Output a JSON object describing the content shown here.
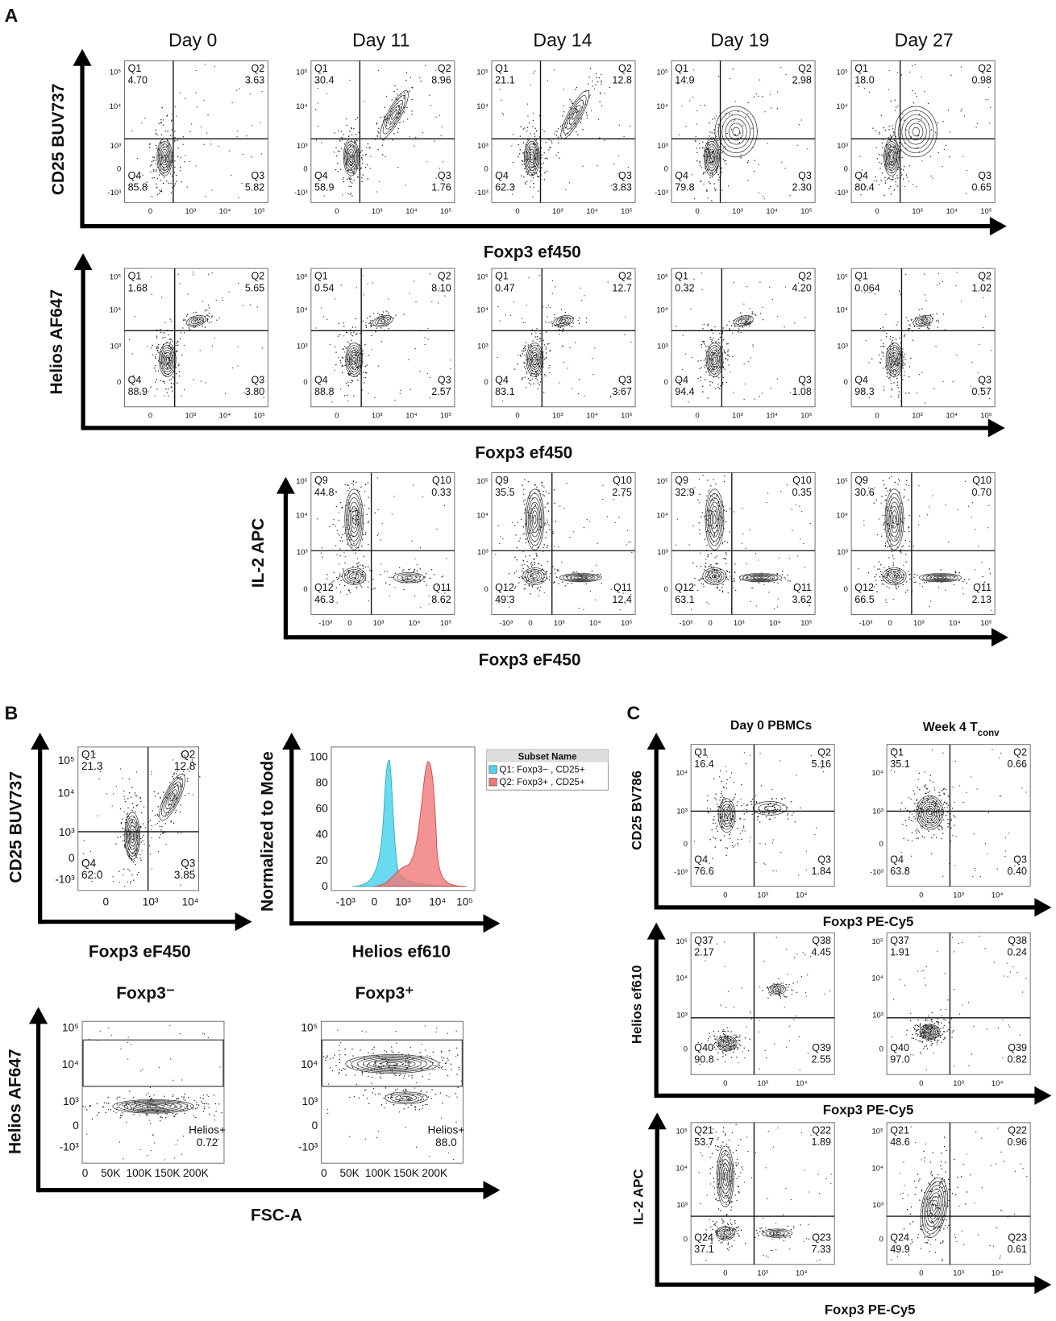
{
  "panel_a": {
    "label": "A",
    "days": [
      "Day 0",
      "Day 11",
      "Day 14",
      "Day 19",
      "Day 27"
    ],
    "rows": [
      {
        "y_label": "CD25 BUV737",
        "x_label": "Foxp3 ef450",
        "y_ticks": [
          "10⁵",
          "10⁴",
          "10³",
          "0",
          "-10³"
        ],
        "x_ticks": [
          "0",
          "10³",
          "10⁴",
          "10⁵"
        ],
        "plots": [
          {
            "quadrants": [
              {
                "name": "Q1",
                "value": "4.70"
              },
              {
                "name": "Q2",
                "value": "3.63"
              },
              {
                "name": "Q3",
                "value": "5.82"
              },
              {
                "name": "Q4",
                "value": "85.8"
              }
            ]
          },
          {
            "quadrants": [
              {
                "name": "Q1",
                "value": "30.4"
              },
              {
                "name": "Q2",
                "value": "8.96"
              },
              {
                "name": "Q3",
                "value": "1.76"
              },
              {
                "name": "Q4",
                "value": "58.9"
              }
            ]
          },
          {
            "quadrants": [
              {
                "name": "Q1",
                "value": "21.1"
              },
              {
                "name": "Q2",
                "value": "12.8"
              },
              {
                "name": "Q3",
                "value": "3.83"
              },
              {
                "name": "Q4",
                "value": "62.3"
              }
            ]
          },
          {
            "quadrants": [
              {
                "name": "Q1",
                "value": "14.9"
              },
              {
                "name": "Q2",
                "value": "2.98"
              },
              {
                "name": "Q3",
                "value": "2.30"
              },
              {
                "name": "Q4",
                "value": "79.8"
              }
            ]
          },
          {
            "quadrants": [
              {
                "name": "Q1",
                "value": "18.0"
              },
              {
                "name": "Q2",
                "value": "0.98"
              },
              {
                "name": "Q3",
                "value": "0.65"
              },
              {
                "name": "Q4",
                "value": "80.4"
              }
            ]
          }
        ]
      },
      {
        "y_label": "Helios AF647",
        "x_label": "Foxp3 ef450",
        "y_ticks": [
          "10⁵",
          "10⁴",
          "10³",
          "0"
        ],
        "x_ticks": [
          "0",
          "10³",
          "10⁴",
          "10⁵"
        ],
        "plots": [
          {
            "quadrants": [
              {
                "name": "Q1",
                "value": "1.68"
              },
              {
                "name": "Q2",
                "value": "5.65"
              },
              {
                "name": "Q3",
                "value": "3.80"
              },
              {
                "name": "Q4",
                "value": "88.9"
              }
            ]
          },
          {
            "quadrants": [
              {
                "name": "Q1",
                "value": "0.54"
              },
              {
                "name": "Q2",
                "value": "8.10"
              },
              {
                "name": "Q3",
                "value": "2.57"
              },
              {
                "name": "Q4",
                "value": "88.8"
              }
            ]
          },
          {
            "quadrants": [
              {
                "name": "Q1",
                "value": "0.47"
              },
              {
                "name": "Q2",
                "value": "12.7"
              },
              {
                "name": "Q3",
                "value": "3.67"
              },
              {
                "name": "Q4",
                "value": "83.1"
              }
            ]
          },
          {
            "quadrants": [
              {
                "name": "Q1",
                "value": "0.32"
              },
              {
                "name": "Q2",
                "value": "4.20"
              },
              {
                "name": "Q3",
                "value": "1.08"
              },
              {
                "name": "Q4",
                "value": "94.4"
              }
            ]
          },
          {
            "quadrants": [
              {
                "name": "Q1",
                "value": "0.064"
              },
              {
                "name": "Q2",
                "value": "1.02"
              },
              {
                "name": "Q3",
                "value": "0.57"
              },
              {
                "name": "Q4",
                "value": "98.3"
              }
            ]
          }
        ]
      },
      {
        "y_label": "IL-2 APC",
        "x_label": "Foxp3 eF450",
        "y_ticks": [
          "10⁵",
          "10⁴",
          "10³",
          "0"
        ],
        "x_ticks": [
          "-10³",
          "0",
          "10³",
          "10⁴",
          "10⁵"
        ],
        "plots": [
          {
            "quadrants": [
              {
                "name": "Q9",
                "value": "44.8"
              },
              {
                "name": "Q10",
                "value": "0.33"
              },
              {
                "name": "Q11",
                "value": "8.62"
              },
              {
                "name": "Q12",
                "value": "46.3"
              }
            ]
          },
          {
            "quadrants": [
              {
                "name": "Q9",
                "value": "35.5"
              },
              {
                "name": "Q10",
                "value": "2.75"
              },
              {
                "name": "Q11",
                "value": "12.4"
              },
              {
                "name": "Q12",
                "value": "49.3"
              }
            ]
          },
          {
            "quadrants": [
              {
                "name": "Q9",
                "value": "32.9"
              },
              {
                "name": "Q10",
                "value": "0.35"
              },
              {
                "name": "Q11",
                "value": "3.62"
              },
              {
                "name": "Q12",
                "value": "63.1"
              }
            ]
          },
          {
            "quadrants": [
              {
                "name": "Q9",
                "value": "30.6"
              },
              {
                "name": "Q10",
                "value": "0.70"
              },
              {
                "name": "Q11",
                "value": "2.13"
              },
              {
                "name": "Q12",
                "value": "66.5"
              }
            ]
          }
        ]
      }
    ]
  },
  "panel_b": {
    "label": "B",
    "dot_plot": {
      "y_label": "CD25 BUV737",
      "x_label": "Foxp3 eF450",
      "y_ticks": [
        "10⁵",
        "10⁴",
        "10³",
        "0",
        "-10³"
      ],
      "x_ticks": [
        "0",
        "10³",
        "10⁴"
      ],
      "quadrants": [
        {
          "name": "Q1",
          "value": "21.3"
        },
        {
          "name": "Q2",
          "value": "12.8"
        },
        {
          "name": "Q3",
          "value": "3.85"
        },
        {
          "name": "Q4",
          "value": "62.0"
        }
      ]
    },
    "histogram": {
      "y_label": "Normalized to Mode",
      "x_label": "Helios ef610",
      "y_ticks": [
        "100",
        "80",
        "60",
        "40",
        "20",
        "0"
      ],
      "x_ticks": [
        "-10³",
        "0",
        "10³",
        "10⁴",
        "10⁵"
      ],
      "legend": {
        "title": "Subset Name",
        "entries": [
          "Q1: Foxp3− , CD25+",
          "Q2: Foxp3+ , CD25+"
        ]
      }
    },
    "gated": {
      "y_label": "Helios AF647",
      "x_label": "FSC-A",
      "y_ticks": [
        "10⁵",
        "10⁴",
        "10³",
        "0",
        "-10³"
      ],
      "x_ticks": [
        "0",
        "50K",
        "100K",
        "150K",
        "200K"
      ],
      "plots": [
        {
          "title": "Foxp3⁻",
          "gate": "Helios+",
          "value": "0.72"
        },
        {
          "title": "Foxp3⁺",
          "gate": "Helios+",
          "value": "88.0"
        }
      ]
    }
  },
  "panel_c": {
    "label": "C",
    "columns": [
      {
        "text": "Day 0 PBMCs"
      },
      {
        "text": "Week 4 T",
        "sub": "conv"
      }
    ],
    "rows": [
      {
        "y_label": "CD25 BV786",
        "x_label": "Foxp3 PE-Cy5",
        "y_ticks": [
          "10⁴",
          "10³",
          "0",
          "-10³"
        ],
        "x_ticks": [
          "0",
          "10³",
          "10⁴"
        ],
        "plots": [
          {
            "quadrants": [
              {
                "name": "Q1",
                "value": "16.4"
              },
              {
                "name": "Q2",
                "value": "5.16"
              },
              {
                "name": "Q3",
                "value": "1.84"
              },
              {
                "name": "Q4",
                "value": "76.6"
              }
            ]
          },
          {
            "quadrants": [
              {
                "name": "Q1",
                "value": "35.1"
              },
              {
                "name": "Q2",
                "value": "0.66"
              },
              {
                "name": "Q3",
                "value": "0.40"
              },
              {
                "name": "Q4",
                "value": "63.8"
              }
            ]
          }
        ]
      },
      {
        "y_label": "Helios ef610",
        "x_label": "Foxp3 PE-Cy5",
        "y_ticks": [
          "10⁵",
          "10⁴",
          "10³",
          "0"
        ],
        "x_ticks": [
          "0",
          "10³",
          "10⁴"
        ],
        "plots": [
          {
            "quadrants": [
              {
                "name": "Q37",
                "value": "2.17"
              },
              {
                "name": "Q38",
                "value": "4.45"
              },
              {
                "name": "Q39",
                "value": "2.55"
              },
              {
                "name": "Q40",
                "value": "90.8"
              }
            ]
          },
          {
            "quadrants": [
              {
                "name": "Q37",
                "value": "1.91"
              },
              {
                "name": "Q38",
                "value": "0.24"
              },
              {
                "name": "Q39",
                "value": "0.82"
              },
              {
                "name": "Q40",
                "value": "97.0"
              }
            ]
          }
        ]
      },
      {
        "y_label": "IL-2 APC",
        "x_label": "Foxp3 PE-Cy5",
        "y_ticks": [
          "10⁵",
          "10⁴",
          "10³",
          "0"
        ],
        "x_ticks": [
          "0",
          "10³",
          "10⁴"
        ],
        "plots": [
          {
            "quadrants": [
              {
                "name": "Q21",
                "value": "53.7"
              },
              {
                "name": "Q22",
                "value": "1.89"
              },
              {
                "name": "Q23",
                "value": "7.33"
              },
              {
                "name": "Q24",
                "value": "37.1"
              }
            ]
          },
          {
            "quadrants": [
              {
                "name": "Q21",
                "value": "48.6"
              },
              {
                "name": "Q22",
                "value": "0.96"
              },
              {
                "name": "Q23",
                "value": "0.61"
              },
              {
                "name": "Q24",
                "value": "49.9"
              }
            ]
          }
        ]
      }
    ]
  }
}
